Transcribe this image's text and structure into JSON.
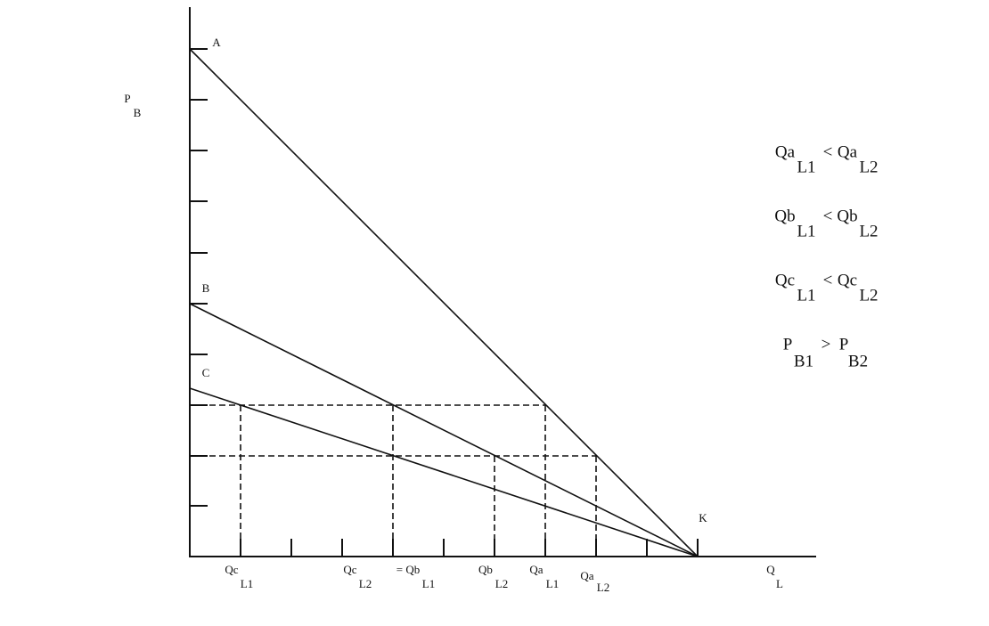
{
  "points": [
    {
      "label": "A"
    },
    {
      "label": "B"
    },
    {
      "label": "C"
    },
    {
      "label": "K"
    }
  ],
  "y_axis_label": {
    "main": "P",
    "sub": "B"
  },
  "x_axis_label": {
    "main": "Q",
    "sub": "L"
  },
  "x_labels": [
    {
      "main": "Qc",
      "sub": "L1"
    },
    {
      "main": "Qc",
      "sub": "L2"
    },
    {
      "main": "= Qb",
      "sub": "L1"
    },
    {
      "main": "Qb",
      "sub": "L2"
    },
    {
      "main": "Qa",
      "sub": "L1"
    },
    {
      "main": "Qa",
      "sub": "L2"
    }
  ],
  "relations": [
    {
      "left": "Qa",
      "left_sub": "L1",
      "op": "<",
      "right": "Qa",
      "right_sub": "L2"
    },
    {
      "left": "Qb",
      "left_sub": "L1",
      "op": "<",
      "right": "Qb",
      "right_sub": "L2"
    },
    {
      "left": "Qc",
      "left_sub": "L1",
      "op": "<",
      "right": "Qc",
      "right_sub": "L2"
    },
    {
      "left": "P",
      "left_sub": "B1",
      "op": ">",
      "right": "P",
      "right_sub": "B2"
    }
  ]
}
